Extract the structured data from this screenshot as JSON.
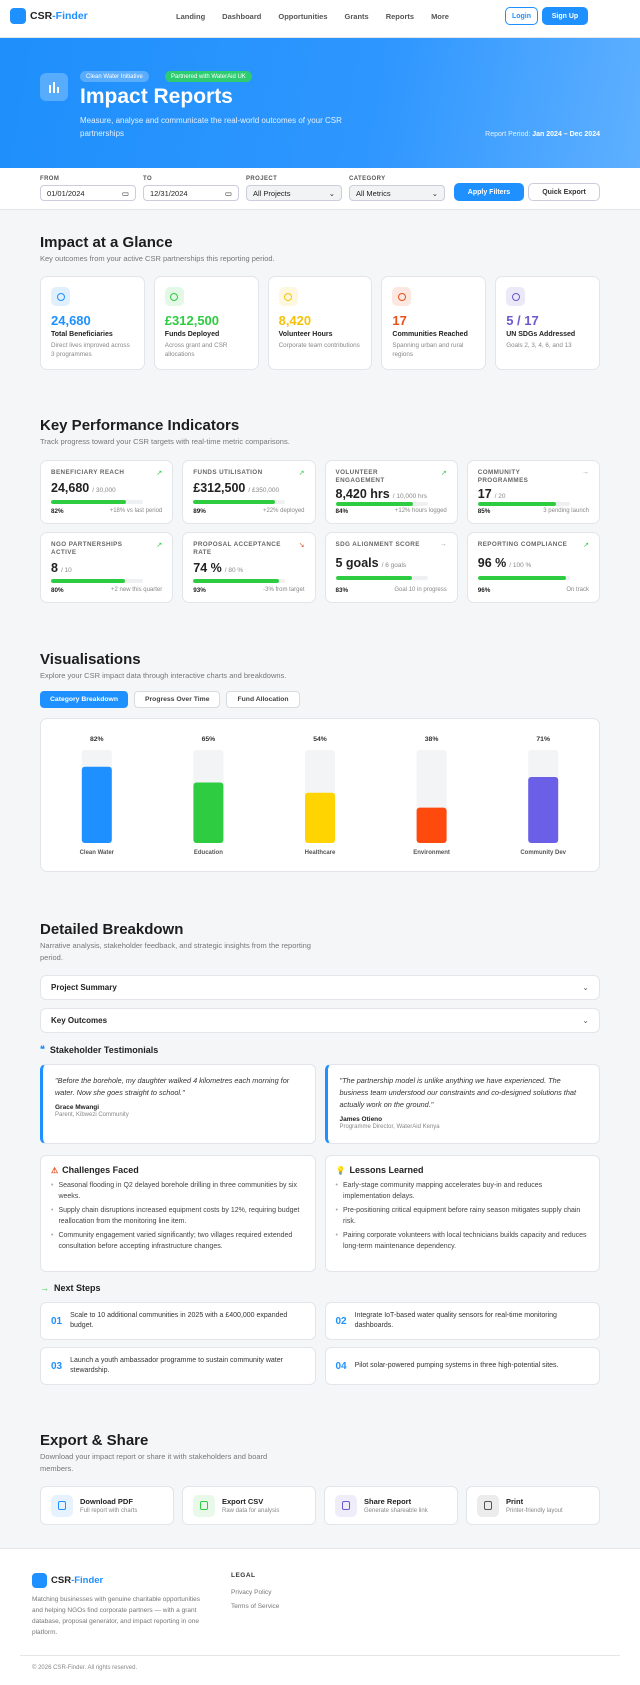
{
  "nav": {
    "brand_a": "CSR",
    "brand_b": "-Finder",
    "links": [
      "Landing",
      "Dashboard",
      "Opportunities",
      "Grants",
      "Reports",
      "More"
    ],
    "login": "Login",
    "signup": "Sign Up"
  },
  "hero": {
    "badges": [
      "Clean Water Initiative",
      "Partnered with WaterAid UK"
    ],
    "title": "Impact Reports",
    "subtitle": "Measure, analyse and communicate the real-world outcomes of your CSR partnerships",
    "period_label": "Report Period:",
    "period": "Jan 2024 – Dec 2024"
  },
  "filters": {
    "from_label": "FROM",
    "from": "01/01/2024",
    "to_label": "TO",
    "to": "12/31/2024",
    "project_label": "PROJECT",
    "project": "All Projects",
    "category_label": "CATEGORY",
    "category": "All Metrics",
    "apply": "Apply Filters",
    "export": "Quick Export"
  },
  "glance": {
    "title": "Impact at a Glance",
    "subtitle": "Key outcomes from your active CSR partnerships this reporting period.",
    "cards": [
      {
        "value": "24,680",
        "label": "Total Beneficiaries",
        "desc": "Direct lives improved across 3 programmes",
        "color": "#1e90ff"
      },
      {
        "value": "£312,500",
        "label": "Funds Deployed",
        "desc": "Across grant and CSR allocations",
        "color": "#2ecc40"
      },
      {
        "value": "8,420",
        "label": "Volunteer Hours",
        "desc": "Corporate team contributions",
        "color": "#f4c20d"
      },
      {
        "value": "17",
        "label": "Communities Reached",
        "desc": "Spanning urban and rural regions",
        "color": "#e8501c"
      },
      {
        "value": "5 / 17",
        "label": "UN SDGs Addressed",
        "desc": "Goals 2, 3, 4, 6, and 13",
        "color": "#6a5acd"
      }
    ]
  },
  "kpis": {
    "title": "Key Performance Indicators",
    "subtitle": "Track progress toward your CSR targets with real-time metric comparisons.",
    "items": [
      {
        "name": "BENEFICIARY REACH",
        "value": "24,680",
        "target": "/ 30,000",
        "progress": 82,
        "progress_label": "82%",
        "note": "+18% vs last period",
        "trend": "up"
      },
      {
        "name": "FUNDS UTILISATION",
        "value": "£312,500",
        "target": "/ £350,000",
        "progress": 89,
        "progress_label": "89%",
        "note": "+22% deployed",
        "trend": "up"
      },
      {
        "name": "VOLUNTEER ENGAGEMENT",
        "value": "8,420 hrs",
        "target": "/ 10,000 hrs",
        "progress": 84,
        "progress_label": "84%",
        "note": "+12% hours logged",
        "trend": "up"
      },
      {
        "name": "COMMUNITY PROGRAMMES",
        "value": "17",
        "target": "/ 20",
        "progress": 85,
        "progress_label": "85%",
        "note": "3 pending launch",
        "trend": "flat"
      },
      {
        "name": "NGO PARTNERSHIPS ACTIVE",
        "value": "8",
        "target": "/ 10",
        "progress": 80,
        "progress_label": "80%",
        "note": "+2 new this quarter",
        "trend": "up"
      },
      {
        "name": "PROPOSAL ACCEPTANCE RATE",
        "value": "74 %",
        "target": "/ 80 %",
        "progress": 93,
        "progress_label": "93%",
        "note": "-3% from target",
        "trend": "down"
      },
      {
        "name": "SDG ALIGNMENT SCORE",
        "value": "5 goals",
        "target": "/ 6 goals",
        "progress": 83,
        "progress_label": "83%",
        "note": "Goal 10 in progress",
        "trend": "flat"
      },
      {
        "name": "REPORTING COMPLIANCE",
        "value": "96 %",
        "target": "/ 100 %",
        "progress": 96,
        "progress_label": "96%",
        "note": "On track",
        "trend": "up"
      }
    ]
  },
  "visualisation": {
    "title": "Visualisations",
    "subtitle": "Explore your CSR impact data through interactive charts and breakdowns.",
    "tabs": [
      "Category Breakdown",
      "Progress Over Time",
      "Fund Allocation"
    ],
    "chart": {
      "type": "bar",
      "categories": [
        "Clean Water",
        "Education",
        "Healthcare",
        "Environment",
        "Community Dev"
      ],
      "values": [
        82,
        65,
        54,
        38,
        71
      ],
      "value_labels": [
        "82%",
        "65%",
        "54%",
        "38%",
        "71%"
      ],
      "colors": [
        "#1e90ff",
        "#2ecc40",
        "#ffd400",
        "#ff4a0d",
        "#6a5fe6"
      ],
      "ylim": [
        0,
        100
      ]
    }
  },
  "breakdown": {
    "title": "Detailed Breakdown",
    "subtitle": "Narrative analysis, stakeholder feedback, and strategic insights from the reporting period.",
    "accordions": [
      "Project Summary",
      "Key Outcomes"
    ],
    "testimonials_title": "Stakeholder Testimonials",
    "testimonials": [
      {
        "quote": "\"Before the borehole, my daughter walked 4 kilometres each morning for water. Now she goes straight to school.\"",
        "name": "Grace Mwangi",
        "role": "Parent, Kibwezi Community"
      },
      {
        "quote": "\"The partnership model is unlike anything we have experienced. The business team understood our constraints and co-designed solutions that actually work on the ground.\"",
        "name": "James Otieno",
        "role": "Programme Director, WaterAid Kenya"
      }
    ],
    "challenges": {
      "title": "Challenges Faced",
      "items": [
        "Seasonal flooding in Q2 delayed borehole drilling in three communities by six weeks.",
        "Supply chain disruptions increased equipment costs by 12%, requiring budget reallocation from the monitoring line item.",
        "Community engagement varied significantly; two villages required extended consultation before accepting infrastructure changes."
      ]
    },
    "lessons": {
      "title": "Lessons Learned",
      "items": [
        "Early-stage community mapping accelerates buy-in and reduces implementation delays.",
        "Pre-positioning critical equipment before rainy season mitigates supply chain risk.",
        "Pairing corporate volunteers with local technicians builds capacity and reduces long-term maintenance dependency."
      ]
    },
    "next_steps": {
      "title": "Next Steps",
      "items": [
        {
          "num": "01",
          "text": "Scale to 10 additional communities in 2025 with a £400,000 expanded budget."
        },
        {
          "num": "02",
          "text": "Integrate IoT-based water quality sensors for real-time monitoring dashboards."
        },
        {
          "num": "03",
          "text": "Launch a youth ambassador programme to sustain community water stewardship."
        },
        {
          "num": "04",
          "text": "Pilot solar-powered pumping systems in three high-potential sites."
        }
      ]
    }
  },
  "export": {
    "title": "Export & Share",
    "subtitle": "Download your impact report or share it with stakeholders and board members.",
    "items": [
      {
        "title": "Download PDF",
        "desc": "Full report with charts",
        "color": "#1e90ff"
      },
      {
        "title": "Export CSV",
        "desc": "Raw data for analysis",
        "color": "#2ecc40"
      },
      {
        "title": "Share Report",
        "desc": "Generate shareable link",
        "color": "#6a5acd"
      },
      {
        "title": "Print",
        "desc": "Printer-friendly layout",
        "color": "#555555"
      }
    ]
  },
  "footer": {
    "brand_a": "CSR",
    "brand_b": "-Finder",
    "text": "Matching businesses with genuine charitable opportunities and helping NGOs find corporate partners — with a grant database, proposal generator, and impact reporting in one platform.",
    "legal_title": "LEGAL",
    "links": [
      "Privacy Policy",
      "Terms of Service"
    ],
    "copyright": "© 2026 CSR-Finder. All rights reserved."
  }
}
